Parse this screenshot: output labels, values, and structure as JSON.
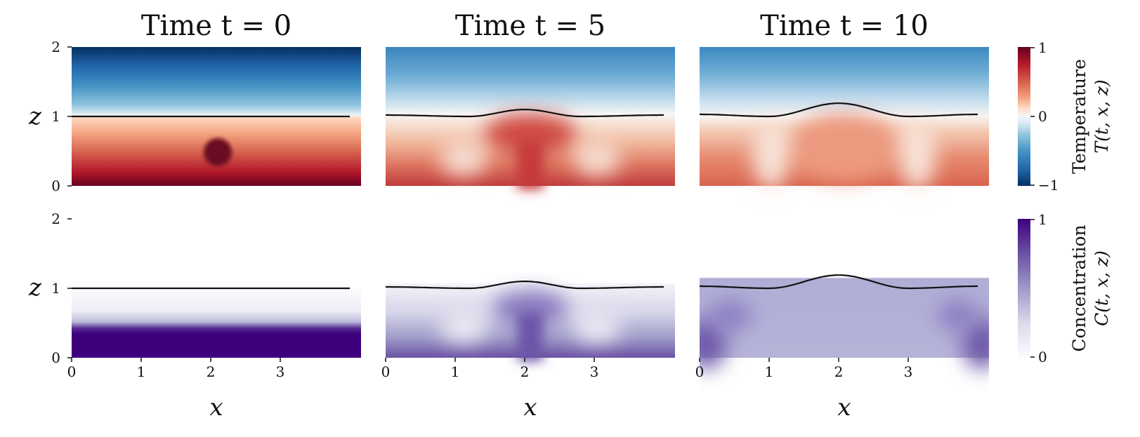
{
  "chart_data": {
    "type": "heatmap",
    "x_domain": [
      0,
      4
    ],
    "z_domain": [
      0,
      2
    ],
    "xlabel": "x",
    "zlabel": "z",
    "x_ticks": [
      "0",
      "1",
      "2",
      "3"
    ],
    "z_ticks": [
      "0",
      "1",
      "2"
    ],
    "panels": [
      {
        "title": "Time t = 0",
        "time": 0,
        "interface_z": [
          [
            0,
            1.0
          ],
          [
            1,
            1.0
          ],
          [
            2,
            1.0
          ],
          [
            3,
            1.0
          ],
          [
            4,
            1.0
          ]
        ]
      },
      {
        "title": "Time t = 5",
        "time": 5,
        "interface_z": [
          [
            0,
            1.02
          ],
          [
            1.2,
            1.0
          ],
          [
            2.0,
            1.1
          ],
          [
            2.8,
            1.0
          ],
          [
            4,
            1.02
          ]
        ]
      },
      {
        "title": "Time t = 10",
        "time": 10,
        "interface_z": [
          [
            0,
            1.03
          ],
          [
            1.0,
            1.0
          ],
          [
            2.0,
            1.19
          ],
          [
            3.0,
            1.0
          ],
          [
            4,
            1.03
          ]
        ]
      }
    ],
    "fields": [
      {
        "name": "Temperature",
        "symbol": "T(t, x, z)",
        "colormap": "RdBu_r",
        "range": [
          -1,
          1
        ],
        "cbar_ticks": [
          "1",
          "0",
          "−1"
        ]
      },
      {
        "name": "Concentration",
        "symbol": "C(t, x, z)",
        "colormap": "Purples",
        "range": [
          0,
          1
        ],
        "cbar_ticks": [
          "1",
          "0"
        ]
      }
    ],
    "colors": {
      "red_dark": "#67001f",
      "red": "#d6604d",
      "red_light": "#fddbc7",
      "white": "#f7f7f7",
      "blue_light": "#d1e5f0",
      "blue": "#4393c3",
      "blue_dark": "#053061",
      "purple_dark": "#3f007d",
      "purple": "#807dba",
      "purple_light": "#bcbddc",
      "purple_white": "#fcfbfd",
      "interface": "#111111"
    }
  }
}
